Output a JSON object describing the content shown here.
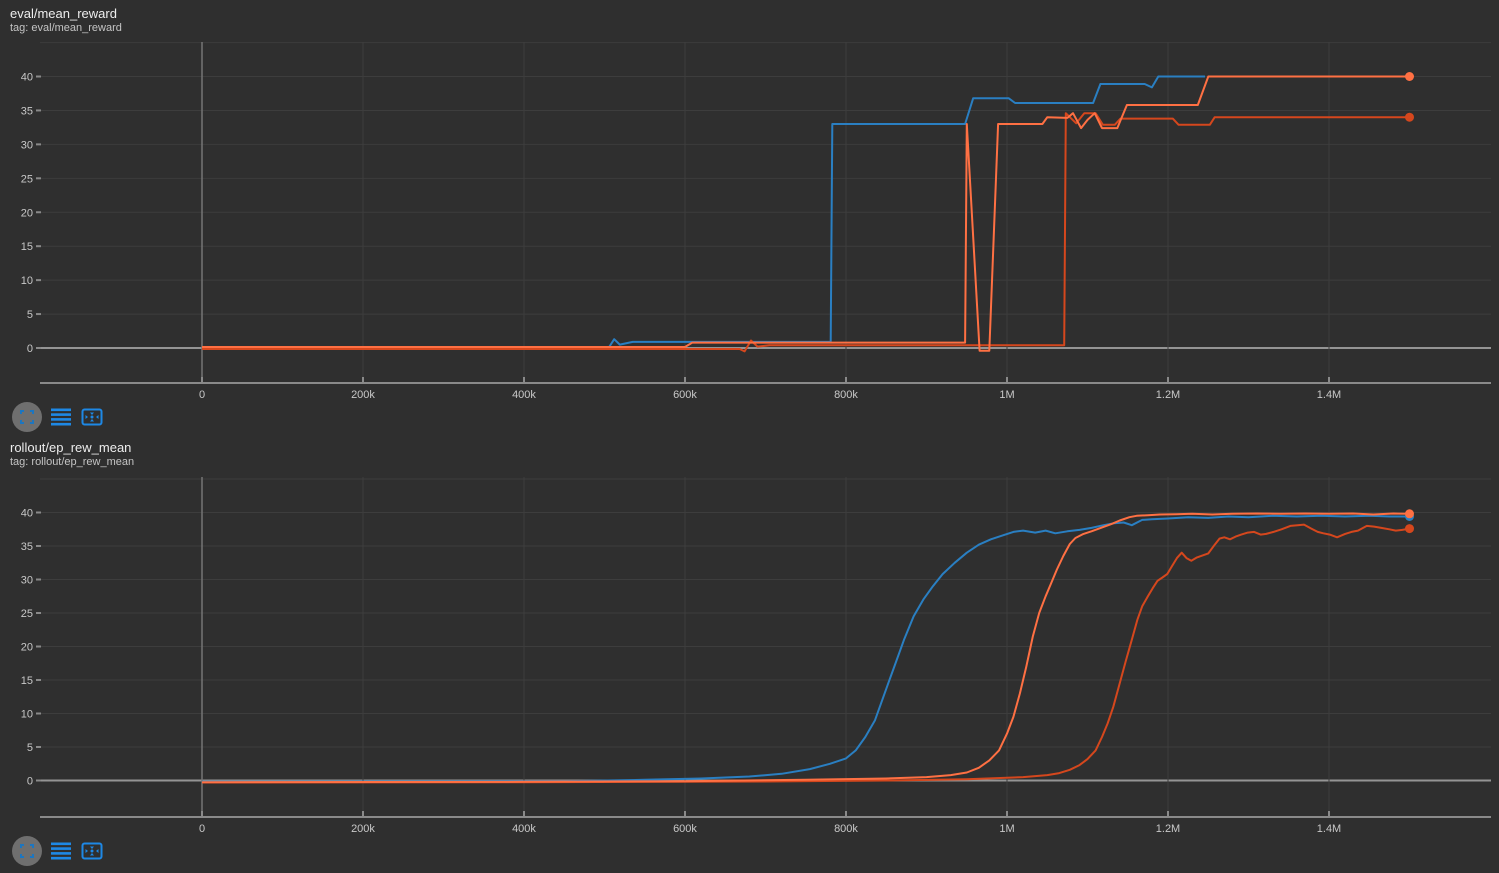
{
  "colors": {
    "background": "#2f2f2f",
    "grid": "#3d3d3d",
    "zero_line": "#949494",
    "axis": "#8a8a8a",
    "axis_vertical": "#757575",
    "tick_text": "#c8c8c8",
    "title_text": "#ededed",
    "icon_blue": "#1e88e5",
    "icon_circle_bg": "#6f6f6f",
    "run_blue": "#2a7fc2",
    "run_orange": "#ff7043",
    "run_deep_orange": "#d5471d"
  },
  "toolbar": {
    "buttons": [
      {
        "icon": "fullscreen-corners-icon"
      },
      {
        "icon": "data-table-icon"
      },
      {
        "icon": "fit-domain-icon"
      }
    ]
  },
  "chart_data": [
    {
      "type": "line",
      "title": "eval/mean_reward",
      "tag": "tag: eval/mean_reward",
      "xlabel": "",
      "ylabel": "",
      "ylim": [
        -5,
        45
      ],
      "grid": true,
      "legend": "none",
      "y_ticks": [
        0,
        5,
        10,
        15,
        20,
        25,
        30,
        35,
        40
      ],
      "x_ticks": [
        {
          "label": "0",
          "value": 0
        },
        {
          "label": "200k",
          "value": 200000
        },
        {
          "label": "400k",
          "value": 400000
        },
        {
          "label": "600k",
          "value": 600000
        },
        {
          "label": "800k",
          "value": 800000
        },
        {
          "label": "1M",
          "value": 1000000
        },
        {
          "label": "1.2M",
          "value": 1200000
        },
        {
          "label": "1.4M",
          "value": 1400000
        }
      ],
      "series": [
        {
          "name": "blue",
          "color": "#2a7fc2",
          "end_dot": false,
          "points": [
            [
              0,
              0
            ],
            [
              505000,
              0
            ],
            [
              512000,
              1.3
            ],
            [
              519000,
              0.5
            ],
            [
              535000,
              0.9
            ],
            [
              781000,
              0.9
            ],
            [
              783000,
              33
            ],
            [
              948000,
              33
            ],
            [
              958000,
              36.8
            ],
            [
              1002000,
              36.8
            ],
            [
              1010000,
              36.1
            ],
            [
              1107000,
              36.1
            ],
            [
              1116000,
              38.9
            ],
            [
              1171000,
              38.9
            ],
            [
              1180000,
              38.4
            ],
            [
              1188000,
              40
            ],
            [
              1246000,
              40
            ]
          ]
        },
        {
          "name": "deep-orange",
          "color": "#d5471d",
          "end_dot": true,
          "points": [
            [
              0,
              -0.15
            ],
            [
              668000,
              -0.15
            ],
            [
              674000,
              -0.5
            ],
            [
              682000,
              1.1
            ],
            [
              690000,
              0.2
            ],
            [
              705000,
              0.4
            ],
            [
              1071000,
              0.4
            ],
            [
              1073000,
              34.6
            ],
            [
              1086000,
              33.1
            ],
            [
              1096000,
              34.6
            ],
            [
              1110000,
              34.6
            ],
            [
              1119000,
              32.9
            ],
            [
              1134000,
              32.9
            ],
            [
              1141000,
              33.8
            ],
            [
              1206000,
              33.8
            ],
            [
              1213000,
              32.9
            ],
            [
              1252000,
              32.9
            ],
            [
              1258000,
              34
            ],
            [
              1500000,
              34
            ]
          ]
        },
        {
          "name": "orange",
          "color": "#ff7043",
          "end_dot": true,
          "points": [
            [
              0,
              0.15
            ],
            [
              600000,
              0.15
            ],
            [
              609000,
              0.8
            ],
            [
              948000,
              0.8
            ],
            [
              950000,
              33
            ],
            [
              966000,
              -0.4
            ],
            [
              978000,
              -0.4
            ],
            [
              989000,
              33
            ],
            [
              1044000,
              33
            ],
            [
              1050000,
              34
            ],
            [
              1075000,
              33.9
            ],
            [
              1082000,
              34.6
            ],
            [
              1092000,
              32.4
            ],
            [
              1100000,
              33.6
            ],
            [
              1109000,
              34.6
            ],
            [
              1118000,
              32.4
            ],
            [
              1137000,
              32.4
            ],
            [
              1149000,
              35.8
            ],
            [
              1237000,
              35.8
            ],
            [
              1250000,
              40
            ],
            [
              1500000,
              40
            ]
          ]
        }
      ]
    },
    {
      "type": "line",
      "title": "rollout/ep_rew_mean",
      "tag": "tag: rollout/ep_rew_mean",
      "xlabel": "",
      "ylabel": "",
      "ylim": [
        -5,
        45
      ],
      "grid": true,
      "legend": "none",
      "y_ticks": [
        0,
        5,
        10,
        15,
        20,
        25,
        30,
        35,
        40
      ],
      "x_ticks": [
        {
          "label": "0",
          "value": 0
        },
        {
          "label": "200k",
          "value": 200000
        },
        {
          "label": "400k",
          "value": 400000
        },
        {
          "label": "600k",
          "value": 600000
        },
        {
          "label": "800k",
          "value": 800000
        },
        {
          "label": "1M",
          "value": 1000000
        },
        {
          "label": "1.2M",
          "value": 1200000
        },
        {
          "label": "1.4M",
          "value": 1400000
        }
      ],
      "series": [
        {
          "name": "blue",
          "color": "#2a7fc2",
          "end_dot": true,
          "points": [
            [
              0,
              -0.2
            ],
            [
              250000,
              -0.15
            ],
            [
              450000,
              -0.1
            ],
            [
              550000,
              0.1
            ],
            [
              620000,
              0.3
            ],
            [
              680000,
              0.6
            ],
            [
              720000,
              1
            ],
            [
              755000,
              1.7
            ],
            [
              780000,
              2.5
            ],
            [
              800000,
              3.3
            ],
            [
              812000,
              4.5
            ],
            [
              824000,
              6.5
            ],
            [
              836000,
              9
            ],
            [
              848000,
              13
            ],
            [
              860000,
              17
            ],
            [
              872000,
              21
            ],
            [
              884000,
              24.5
            ],
            [
              896000,
              27
            ],
            [
              908000,
              29
            ],
            [
              920000,
              30.8
            ],
            [
              935000,
              32.5
            ],
            [
              950000,
              34
            ],
            [
              965000,
              35.2
            ],
            [
              980000,
              36
            ],
            [
              995000,
              36.6
            ],
            [
              1008000,
              37.1
            ],
            [
              1020000,
              37.3
            ],
            [
              1035000,
              37
            ],
            [
              1048000,
              37.3
            ],
            [
              1060000,
              36.9
            ],
            [
              1075000,
              37.2
            ],
            [
              1090000,
              37.4
            ],
            [
              1105000,
              37.7
            ],
            [
              1120000,
              38.1
            ],
            [
              1133000,
              38.4
            ],
            [
              1145000,
              38.5
            ],
            [
              1155000,
              38.1
            ],
            [
              1168000,
              38.9
            ],
            [
              1180000,
              39
            ],
            [
              1200000,
              39.1
            ],
            [
              1225000,
              39.3
            ],
            [
              1250000,
              39.2
            ],
            [
              1275000,
              39.4
            ],
            [
              1300000,
              39.3
            ],
            [
              1330000,
              39.5
            ],
            [
              1360000,
              39.4
            ],
            [
              1390000,
              39.5
            ],
            [
              1420000,
              39.4
            ],
            [
              1450000,
              39.5
            ],
            [
              1475000,
              39.4
            ],
            [
              1500000,
              39.4
            ]
          ]
        },
        {
          "name": "deep-orange",
          "color": "#d5471d",
          "end_dot": true,
          "points": [
            [
              0,
              -0.3
            ],
            [
              400000,
              -0.25
            ],
            [
              700000,
              -0.15
            ],
            [
              850000,
              0
            ],
            [
              950000,
              0.2
            ],
            [
              1020000,
              0.5
            ],
            [
              1050000,
              0.8
            ],
            [
              1065000,
              1.1
            ],
            [
              1078000,
              1.6
            ],
            [
              1090000,
              2.3
            ],
            [
              1100000,
              3.2
            ],
            [
              1110000,
              4.5
            ],
            [
              1118000,
              6.5
            ],
            [
              1125000,
              8.5
            ],
            [
              1132000,
              11
            ],
            [
              1140000,
              14.5
            ],
            [
              1148000,
              18
            ],
            [
              1155000,
              21
            ],
            [
              1162000,
              24
            ],
            [
              1168000,
              26
            ],
            [
              1175000,
              27.5
            ],
            [
              1181000,
              28.7
            ],
            [
              1187000,
              29.8
            ],
            [
              1193000,
              30.3
            ],
            [
              1199000,
              30.8
            ],
            [
              1205000,
              32
            ],
            [
              1211000,
              33.2
            ],
            [
              1217000,
              34
            ],
            [
              1223000,
              33.2
            ],
            [
              1229000,
              32.8
            ],
            [
              1236000,
              33.3
            ],
            [
              1243000,
              33.6
            ],
            [
              1250000,
              33.9
            ],
            [
              1258000,
              35.2
            ],
            [
              1264000,
              36.1
            ],
            [
              1270000,
              36.3
            ],
            [
              1277000,
              36
            ],
            [
              1284000,
              36.4
            ],
            [
              1291000,
              36.7
            ],
            [
              1299000,
              37
            ],
            [
              1307000,
              37.1
            ],
            [
              1315000,
              36.7
            ],
            [
              1322000,
              36.8
            ],
            [
              1331000,
              37.1
            ],
            [
              1341000,
              37.5
            ],
            [
              1352000,
              38
            ],
            [
              1361000,
              38.1
            ],
            [
              1369000,
              38.2
            ],
            [
              1378000,
              37.6
            ],
            [
              1386000,
              37.1
            ],
            [
              1393000,
              36.9
            ],
            [
              1401000,
              36.7
            ],
            [
              1410000,
              36.3
            ],
            [
              1420000,
              36.8
            ],
            [
              1428000,
              37.1
            ],
            [
              1436000,
              37.3
            ],
            [
              1447000,
              38
            ],
            [
              1456000,
              37.9
            ],
            [
              1465000,
              37.7
            ],
            [
              1475000,
              37.5
            ],
            [
              1483000,
              37.3
            ],
            [
              1491000,
              37.4
            ],
            [
              1500000,
              37.6
            ]
          ]
        },
        {
          "name": "orange",
          "color": "#ff7043",
          "end_dot": true,
          "points": [
            [
              0,
              -0.25
            ],
            [
              400000,
              -0.2
            ],
            [
              600000,
              -0.1
            ],
            [
              750000,
              0.1
            ],
            [
              850000,
              0.3
            ],
            [
              900000,
              0.5
            ],
            [
              930000,
              0.8
            ],
            [
              950000,
              1.2
            ],
            [
              965000,
              1.9
            ],
            [
              978000,
              3
            ],
            [
              990000,
              4.5
            ],
            [
              1000000,
              7
            ],
            [
              1008000,
              9.5
            ],
            [
              1016000,
              13
            ],
            [
              1024000,
              17
            ],
            [
              1032000,
              21.5
            ],
            [
              1040000,
              25
            ],
            [
              1048000,
              27.5
            ],
            [
              1055000,
              29.5
            ],
            [
              1062000,
              31.5
            ],
            [
              1070000,
              33.5
            ],
            [
              1078000,
              35.3
            ],
            [
              1085000,
              36.2
            ],
            [
              1095000,
              36.8
            ],
            [
              1105000,
              37.2
            ],
            [
              1119000,
              37.8
            ],
            [
              1130000,
              38.3
            ],
            [
              1140000,
              38.8
            ],
            [
              1152000,
              39.3
            ],
            [
              1161000,
              39.5
            ],
            [
              1175000,
              39.6
            ],
            [
              1190000,
              39.7
            ],
            [
              1210000,
              39.75
            ],
            [
              1230000,
              39.8
            ],
            [
              1255000,
              39.7
            ],
            [
              1280000,
              39.8
            ],
            [
              1310000,
              39.85
            ],
            [
              1340000,
              39.8
            ],
            [
              1370000,
              39.85
            ],
            [
              1400000,
              39.8
            ],
            [
              1430000,
              39.85
            ],
            [
              1455000,
              39.7
            ],
            [
              1480000,
              39.85
            ],
            [
              1500000,
              39.8
            ]
          ]
        }
      ]
    }
  ]
}
